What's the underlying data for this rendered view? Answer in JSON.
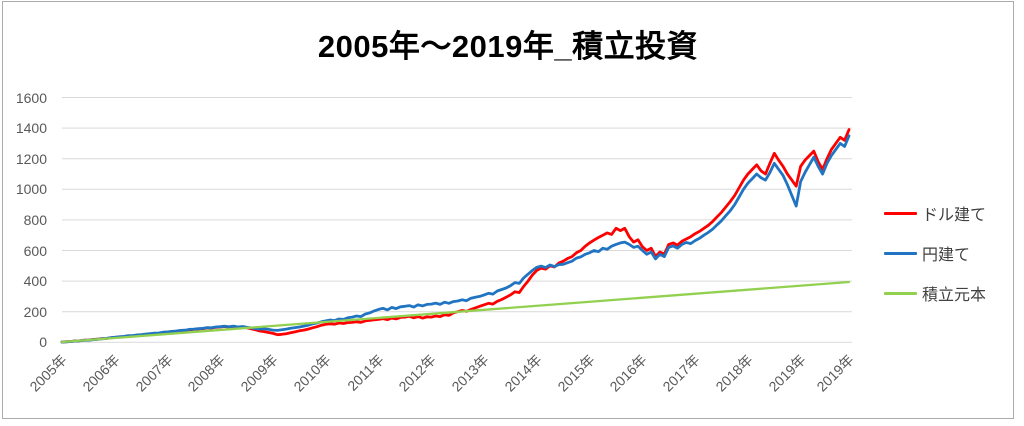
{
  "title": "2005年～2019年_積立投資",
  "legend": {
    "items": [
      {
        "label": "ドル建て",
        "color": "#ff0000"
      },
      {
        "label": "円建て",
        "color": "#2074c1"
      },
      {
        "label": "積立元本",
        "color": "#92d050"
      }
    ]
  },
  "colors": {
    "grid": "#d9d9d9",
    "axis_text": "#595959",
    "frame_border": "#ababab",
    "background": "#ffffff",
    "title_text": "#000000"
  },
  "chart_data": {
    "type": "line",
    "title": "2005年～2019年_積立投資",
    "xlabel": "",
    "ylabel": "",
    "grid": "horizontal",
    "legend_position": "right",
    "y_max": 1600,
    "y_ticks": [
      0,
      200,
      400,
      600,
      800,
      1000,
      1200,
      1400,
      1600
    ],
    "months_total": 180,
    "x_tick_months": [
      0,
      12,
      24,
      36,
      48,
      60,
      72,
      84,
      96,
      108,
      120,
      132,
      144,
      156,
      168,
      179
    ],
    "x_tick_labels": [
      "2005年",
      "2006年",
      "2007年",
      "2008年",
      "2009年",
      "2010年",
      "2011年",
      "2012年",
      "2013年",
      "2014年",
      "2015年",
      "2016年",
      "2017年",
      "2018年",
      "2019年",
      "2019年"
    ],
    "series": [
      {
        "name": "ドル建て",
        "color": "#ff0000",
        "width": 2.8,
        "values": [
          2,
          4,
          5,
          9,
          10,
          14,
          15,
          18,
          20,
          24,
          25,
          29,
          32,
          35,
          37,
          41,
          42,
          46,
          48,
          51,
          54,
          58,
          59,
          64,
          66,
          69,
          72,
          76,
          77,
          82,
          84,
          87,
          89,
          94,
          93,
          98,
          100,
          103,
          99,
          104,
          97,
          100,
          95,
          88,
          82,
          74,
          70,
          64,
          58,
          50,
          52,
          56,
          63,
          68,
          75,
          80,
          86,
          95,
          102,
          112,
          118,
          121,
          118,
          126,
          123,
          129,
          130,
          134,
          131,
          140,
          143,
          147,
          150,
          155,
          148,
          158,
          153,
          163,
          165,
          170,
          160,
          168,
          158,
          166,
          165,
          172,
          168,
          180,
          176,
          192,
          200,
          208,
          202,
          215,
          225,
          235,
          245,
          255,
          250,
          268,
          280,
          295,
          310,
          330,
          325,
          365,
          400,
          440,
          470,
          485,
          478,
          500,
          492,
          518,
          530,
          548,
          560,
          585,
          600,
          628,
          650,
          668,
          685,
          700,
          715,
          705,
          745,
          730,
          745,
          690,
          655,
          670,
          625,
          600,
          615,
          560,
          590,
          575,
          640,
          650,
          635,
          660,
          675,
          690,
          710,
          725,
          745,
          765,
          790,
          820,
          850,
          885,
          920,
          960,
          1010,
          1060,
          1100,
          1130,
          1160,
          1120,
          1100,
          1170,
          1235,
          1190,
          1150,
          1100,
          1060,
          1020,
          1150,
          1190,
          1220,
          1250,
          1180,
          1130,
          1200,
          1260,
          1300,
          1340,
          1320,
          1390
        ]
      },
      {
        "name": "円建て",
        "color": "#2074c1",
        "width": 2.8,
        "values": [
          2,
          3,
          5,
          8,
          9,
          13,
          14,
          17,
          19,
          23,
          25,
          30,
          33,
          36,
          38,
          43,
          44,
          48,
          50,
          53,
          56,
          60,
          61,
          66,
          68,
          71,
          74,
          78,
          79,
          84,
          86,
          89,
          91,
          96,
          95,
          100,
          102,
          105,
          101,
          106,
          100,
          103,
          98,
          94,
          90,
          86,
          88,
          84,
          80,
          78,
          82,
          86,
          92,
          96,
          100,
          106,
          112,
          120,
          126,
          134,
          140,
          146,
          142,
          152,
          150,
          160,
          165,
          172,
          168,
          185,
          192,
          205,
          215,
          222,
          212,
          228,
          220,
          232,
          235,
          240,
          230,
          245,
          238,
          248,
          250,
          256,
          248,
          262,
          255,
          266,
          270,
          278,
          272,
          288,
          295,
          300,
          310,
          320,
          315,
          335,
          345,
          355,
          370,
          390,
          385,
          420,
          445,
          470,
          490,
          498,
          488,
          505,
          495,
          508,
          510,
          520,
          530,
          550,
          558,
          575,
          585,
          600,
          592,
          615,
          608,
          628,
          640,
          650,
          655,
          640,
          620,
          628,
          600,
          575,
          590,
          545,
          575,
          560,
          620,
          630,
          615,
          640,
          652,
          645,
          665,
          680,
          700,
          718,
          740,
          768,
          795,
          828,
          860,
          900,
          950,
          1000,
          1040,
          1070,
          1100,
          1075,
          1060,
          1110,
          1170,
          1130,
          1090,
          1030,
          960,
          890,
          1050,
          1110,
          1160,
          1210,
          1150,
          1100,
          1170,
          1220,
          1260,
          1300,
          1280,
          1350
        ]
      },
      {
        "name": "積立元本",
        "color": "#92d050",
        "width": 2.3,
        "linear_start": 2,
        "linear_end": 394
      }
    ]
  }
}
